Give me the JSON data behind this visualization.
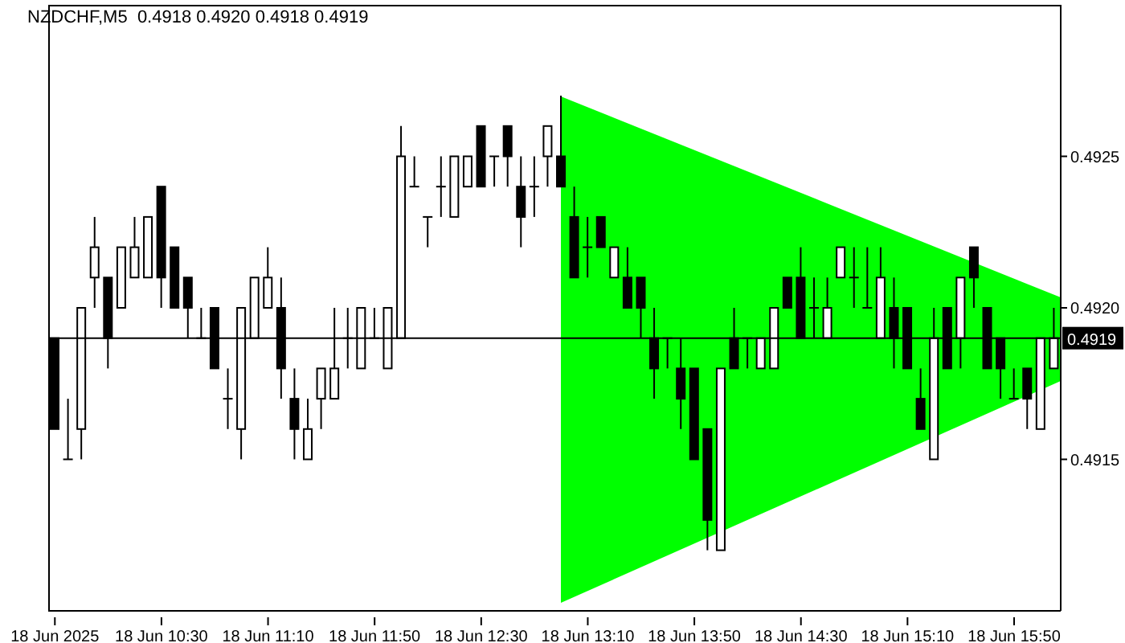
{
  "chart_data": {
    "type": "candlestick",
    "title": "NZDCHF,M5  0.4918 0.4920 0.4918 0.4919",
    "categories": [
      "18 Jun 2025",
      null,
      null,
      null,
      null,
      null,
      null,
      null,
      "18 Jun 10:30",
      null,
      null,
      null,
      null,
      null,
      null,
      null,
      "18 Jun 11:10",
      null,
      null,
      null,
      null,
      null,
      null,
      null,
      "18 Jun 11:50",
      null,
      null,
      null,
      null,
      null,
      null,
      null,
      "18 Jun 12:30",
      null,
      null,
      null,
      null,
      null,
      null,
      null,
      "18 Jun 13:10",
      null,
      null,
      null,
      null,
      null,
      null,
      null,
      "18 Jun 13:50",
      null,
      null,
      null,
      null,
      null,
      null,
      null,
      "18 Jun 14:30",
      null,
      null,
      null,
      null,
      null,
      null,
      null,
      "18 Jun 15:10",
      null,
      null,
      null,
      null,
      null,
      null,
      null,
      "18 Jun 15:50",
      null,
      null,
      null
    ],
    "ohlc": [
      [
        0.4919,
        0.4919,
        0.4916,
        0.4916
      ],
      [
        0.4915,
        0.4917,
        0.4915,
        0.4915
      ],
      [
        0.4916,
        0.492,
        0.4915,
        0.492
      ],
      [
        0.4921,
        0.4923,
        0.492,
        0.4922
      ],
      [
        0.4921,
        0.4921,
        0.4918,
        0.4919
      ],
      [
        0.492,
        0.4922,
        0.492,
        0.4922
      ],
      [
        0.4921,
        0.4923,
        0.4921,
        0.4922
      ],
      [
        0.4921,
        0.4923,
        0.4921,
        0.4923
      ],
      [
        0.4924,
        0.4924,
        0.492,
        0.4921
      ],
      [
        0.4922,
        0.4922,
        0.492,
        0.492
      ],
      [
        0.4921,
        0.4921,
        0.4919,
        0.492
      ],
      [
        0.4919,
        0.492,
        0.4919,
        0.4919
      ],
      [
        0.492,
        0.492,
        0.4918,
        0.4918
      ],
      [
        0.4917,
        0.4918,
        0.4916,
        0.4917
      ],
      [
        0.4916,
        0.492,
        0.4915,
        0.492
      ],
      [
        0.4919,
        0.4921,
        0.4919,
        0.4921
      ],
      [
        0.492,
        0.4922,
        0.492,
        0.4921
      ],
      [
        0.492,
        0.4921,
        0.4917,
        0.4918
      ],
      [
        0.4917,
        0.4918,
        0.4915,
        0.4916
      ],
      [
        0.4915,
        0.4917,
        0.4915,
        0.4916
      ],
      [
        0.4917,
        0.4918,
        0.4916,
        0.4918
      ],
      [
        0.4917,
        0.492,
        0.4917,
        0.4918
      ],
      [
        0.4919,
        0.492,
        0.4918,
        0.4919
      ],
      [
        0.4918,
        0.492,
        0.4918,
        0.492
      ],
      [
        0.4919,
        0.492,
        0.4919,
        0.4919
      ],
      [
        0.4918,
        0.492,
        0.4918,
        0.492
      ],
      [
        0.4919,
        0.4926,
        0.4919,
        0.4925
      ],
      [
        0.4924,
        0.4925,
        0.4924,
        0.4924
      ],
      [
        0.4923,
        0.4923,
        0.4922,
        0.4923
      ],
      [
        0.4924,
        0.4925,
        0.4923,
        0.4924
      ],
      [
        0.4923,
        0.4925,
        0.4923,
        0.4925
      ],
      [
        0.4924,
        0.4925,
        0.4924,
        0.4925
      ],
      [
        0.4926,
        0.4926,
        0.4924,
        0.4924
      ],
      [
        0.4925,
        0.4925,
        0.4924,
        0.4925
      ],
      [
        0.4926,
        0.4926,
        0.4924,
        0.4925
      ],
      [
        0.4924,
        0.4925,
        0.4922,
        0.4923
      ],
      [
        0.4924,
        0.4925,
        0.4923,
        0.4924
      ],
      [
        0.4925,
        0.4926,
        0.4924,
        0.4926
      ],
      [
        0.4925,
        0.4927,
        0.4924,
        0.4924
      ],
      [
        0.4923,
        0.4924,
        0.4921,
        0.4921
      ],
      [
        0.4922,
        0.4923,
        0.4921,
        0.4922
      ],
      [
        0.4923,
        0.4923,
        0.4922,
        0.4922
      ],
      [
        0.4921,
        0.4922,
        0.4921,
        0.4922
      ],
      [
        0.4921,
        0.4922,
        0.492,
        0.492
      ],
      [
        0.4921,
        0.4921,
        0.4919,
        0.492
      ],
      [
        0.4919,
        0.492,
        0.4917,
        0.4918
      ],
      [
        0.4919,
        0.4919,
        0.4918,
        0.4919
      ],
      [
        0.4918,
        0.4919,
        0.4916,
        0.4917
      ],
      [
        0.4918,
        0.4918,
        0.4915,
        0.4915
      ],
      [
        0.4916,
        0.4916,
        0.4912,
        0.4913
      ],
      [
        0.4912,
        0.4918,
        0.4912,
        0.4918
      ],
      [
        0.4919,
        0.492,
        0.4918,
        0.4918
      ],
      [
        0.4919,
        0.4919,
        0.4918,
        0.4919
      ],
      [
        0.4918,
        0.4919,
        0.4918,
        0.4919
      ],
      [
        0.4918,
        0.492,
        0.4918,
        0.492
      ],
      [
        0.4921,
        0.4921,
        0.492,
        0.492
      ],
      [
        0.4921,
        0.4922,
        0.4919,
        0.4919
      ],
      [
        0.492,
        0.4921,
        0.4919,
        0.492
      ],
      [
        0.4919,
        0.4921,
        0.4919,
        0.492
      ],
      [
        0.4921,
        0.4922,
        0.4921,
        0.4922
      ],
      [
        0.4921,
        0.4922,
        0.492,
        0.4921
      ],
      [
        0.492,
        0.4922,
        0.492,
        0.492
      ],
      [
        0.4919,
        0.4922,
        0.4919,
        0.4921
      ],
      [
        0.492,
        0.4921,
        0.4918,
        0.4919
      ],
      [
        0.492,
        0.492,
        0.4918,
        0.4918
      ],
      [
        0.4917,
        0.4918,
        0.4916,
        0.4916
      ],
      [
        0.4915,
        0.492,
        0.4915,
        0.4919
      ],
      [
        0.492,
        0.492,
        0.4918,
        0.4918
      ],
      [
        0.4919,
        0.4921,
        0.4918,
        0.4921
      ],
      [
        0.4922,
        0.4922,
        0.492,
        0.4921
      ],
      [
        0.492,
        0.492,
        0.4918,
        0.4918
      ],
      [
        0.4919,
        0.4919,
        0.4917,
        0.4918
      ],
      [
        0.4917,
        0.4918,
        0.4917,
        0.4917
      ],
      [
        0.4918,
        0.4918,
        0.4916,
        0.4917
      ],
      [
        0.4916,
        0.4919,
        0.4916,
        0.4919
      ],
      [
        0.4918,
        0.492,
        0.4918,
        0.4919
      ]
    ],
    "ylim": [
      0.491,
      0.493
    ],
    "yticks": [
      0.4915,
      {
        "value": 0.492,
        "label": "0.4920"
      },
      0.4925
    ],
    "ref_lines": [
      {
        "axis": "y",
        "value": 0.4919,
        "label": "0.4919"
      }
    ]
  }
}
